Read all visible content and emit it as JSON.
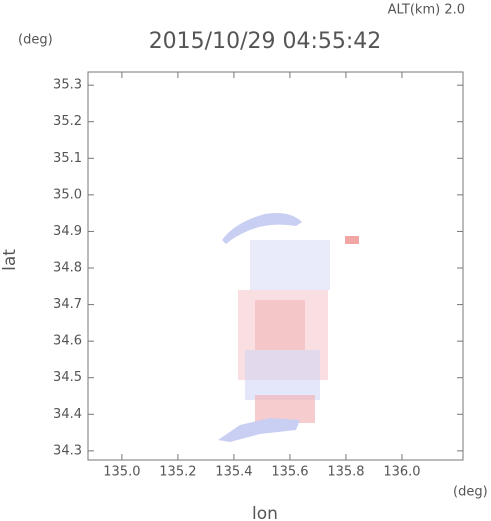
{
  "chart_data": {
    "type": "map",
    "title": "2015/10/29 04:55:42",
    "annotation": "ALT(km) 2.0",
    "x_label": "lon",
    "y_label": "lat",
    "x_unit": "(deg)",
    "y_unit": "(deg)",
    "xlim": [
      134.879,
      136.218
    ],
    "ylim": [
      34.275,
      35.336
    ],
    "xticks": [
      {
        "value": 135,
        "label": "135.0"
      },
      135.2,
      135.4,
      135.6,
      135.8,
      {
        "value": 136,
        "label": "136.0"
      }
    ],
    "yticks": [
      34.3,
      34.4,
      34.5,
      34.6,
      34.7,
      34.8,
      34.9,
      {
        "value": 35,
        "label": "35.0"
      },
      35.1,
      35.2,
      35.3
    ]
  }
}
